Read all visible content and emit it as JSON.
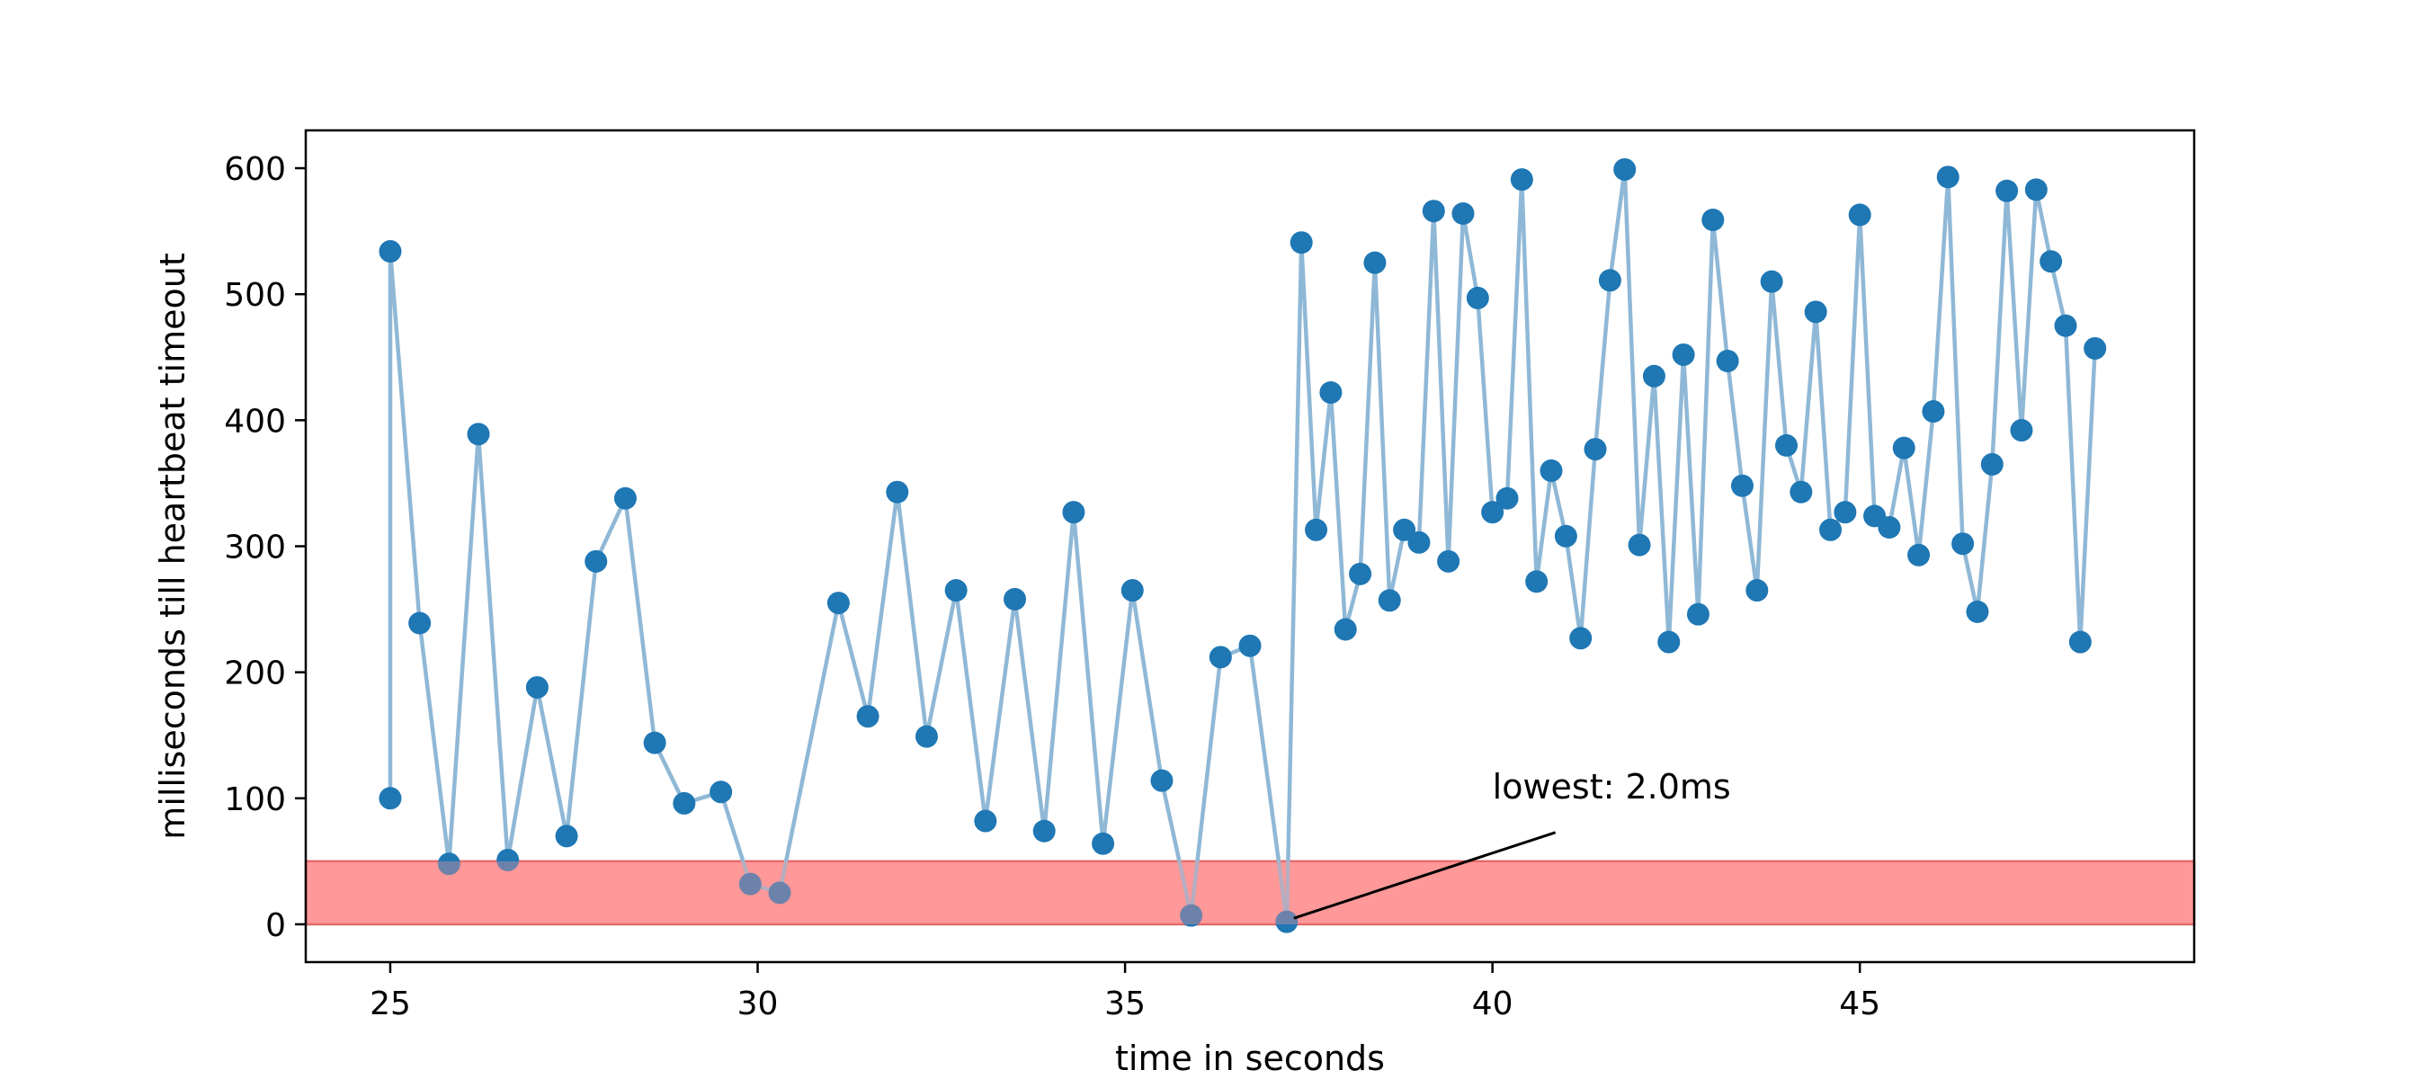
{
  "chart_data": {
    "type": "line",
    "xlabel": "time in seconds",
    "ylabel": "milliseconds till heartbeat timeout",
    "xlim": [
      23.85,
      49.55
    ],
    "ylim": [
      -30,
      630
    ],
    "xticks": [
      25,
      30,
      35,
      40,
      45
    ],
    "yticks": [
      0,
      100,
      200,
      300,
      400,
      500,
      600
    ],
    "grid": false,
    "legend": false,
    "colors": {
      "line": "#8fb8d6",
      "marker": "#1f77b4",
      "band": "#ff9999",
      "band_edge": "#e06060"
    },
    "threshold_band": {
      "ymin": 0,
      "ymax": 50
    },
    "series": [
      {
        "x": [
          25.0,
          25.0,
          25.4,
          25.8,
          26.2,
          26.6,
          27.0,
          27.4,
          27.8,
          28.2,
          28.6,
          29.0,
          29.5,
          29.9,
          30.3,
          31.1,
          31.5,
          31.9,
          32.3,
          32.7,
          33.1,
          33.5,
          33.9,
          34.3,
          34.7,
          35.1,
          35.5,
          35.9,
          36.3,
          36.7,
          37.2,
          37.4,
          37.6,
          37.8,
          38.0,
          38.2,
          38.4,
          38.6,
          38.8,
          39.0,
          39.2,
          39.4,
          39.6,
          39.8,
          40.0,
          40.2,
          40.4,
          40.6,
          40.8,
          41.0,
          41.2,
          41.4,
          41.6,
          41.8,
          42.0,
          42.2,
          42.4,
          42.6,
          42.8,
          43.0,
          43.2,
          43.4,
          43.6,
          43.8,
          44.0,
          44.2,
          44.4,
          44.6,
          44.8,
          45.0,
          45.2,
          45.4,
          45.6,
          45.8,
          46.0,
          46.2,
          46.4,
          46.6,
          46.8,
          47.0,
          47.2,
          47.4,
          47.6,
          47.8,
          48.0,
          48.2
        ],
        "y": [
          100,
          534,
          239,
          48,
          389,
          51,
          188,
          70,
          288,
          338,
          144,
          96,
          105,
          32,
          25,
          255,
          165,
          343,
          149,
          265,
          82,
          258,
          74,
          327,
          64,
          265,
          114,
          7,
          212,
          221,
          2,
          541,
          313,
          422,
          234,
          278,
          525,
          257,
          313,
          303,
          566,
          288,
          564,
          497,
          327,
          338,
          591,
          272,
          360,
          308,
          227,
          377,
          511,
          599,
          301,
          435,
          224,
          452,
          246,
          559,
          447,
          348,
          265,
          510,
          380,
          343,
          486,
          313,
          327,
          563,
          324,
          315,
          378,
          293,
          407,
          593,
          302,
          248,
          365,
          582,
          392,
          583,
          526,
          475,
          224,
          457
        ]
      }
    ],
    "annotations": [
      {
        "text": "lowest: 2.0ms",
        "x": 37.2,
        "y": 2,
        "text_x": 40.0,
        "text_y": 100
      }
    ]
  }
}
